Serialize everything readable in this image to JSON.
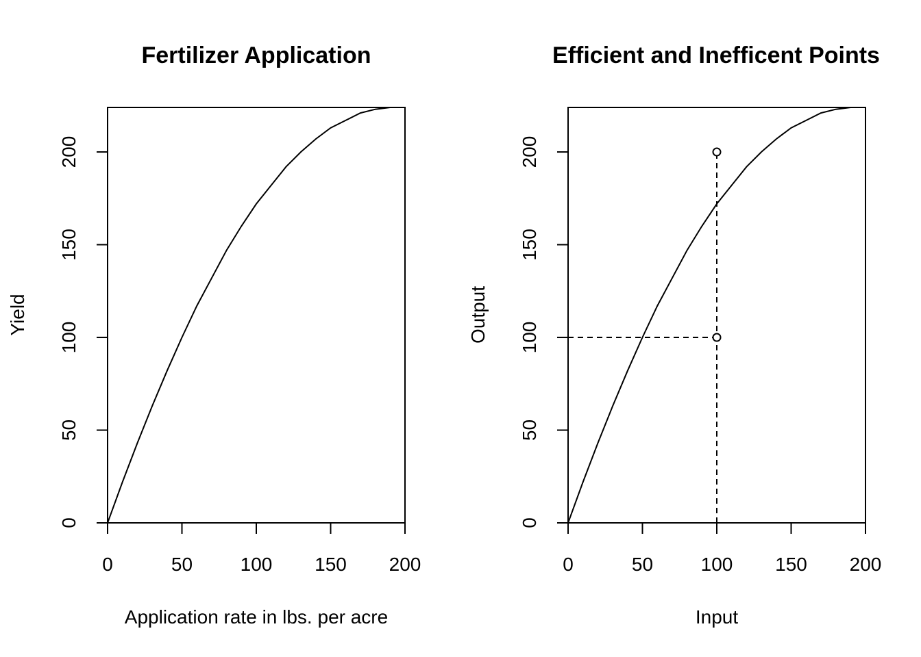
{
  "chart_data": [
    {
      "type": "line",
      "title": "Fertilizer Application",
      "xlabel": "Application rate in lbs. per acre",
      "ylabel": "Yield",
      "xlim": [
        0,
        200
      ],
      "ylim": [
        0,
        224
      ],
      "xticks": [
        "0",
        "50",
        "100",
        "150",
        "200"
      ],
      "yticks": [
        "0",
        "50",
        "100",
        "150",
        "200"
      ],
      "series": [
        {
          "x": [
            0,
            10,
            20,
            30,
            40,
            50,
            60,
            70,
            80,
            90,
            100,
            110,
            120,
            130,
            140,
            150,
            160,
            170,
            180,
            190,
            200
          ],
          "y": [
            0,
            22,
            43,
            63,
            82,
            100,
            117,
            132,
            147,
            160,
            172,
            182,
            192,
            200,
            207,
            213,
            217,
            221,
            223,
            224,
            224
          ]
        }
      ]
    },
    {
      "type": "line",
      "title": "Efficient and Inefficent Points",
      "xlabel": "Input",
      "ylabel": "Output",
      "xlim": [
        0,
        200
      ],
      "ylim": [
        0,
        224
      ],
      "xticks": [
        "0",
        "50",
        "100",
        "150",
        "200"
      ],
      "yticks": [
        "0",
        "50",
        "100",
        "150",
        "200"
      ],
      "series": [
        {
          "x": [
            0,
            10,
            20,
            30,
            40,
            50,
            60,
            70,
            80,
            90,
            100,
            110,
            120,
            130,
            140,
            150,
            160,
            170,
            180,
            190,
            200
          ],
          "y": [
            0,
            22,
            43,
            63,
            82,
            100,
            117,
            132,
            147,
            160,
            172,
            182,
            192,
            200,
            207,
            213,
            217,
            221,
            223,
            224,
            224
          ]
        }
      ],
      "points": [
        {
          "x": 100,
          "y": 200
        },
        {
          "x": 100,
          "y": 100
        }
      ],
      "reference_lines": [
        {
          "orientation": "vertical",
          "x": 100,
          "y_from": 0,
          "y_to": 200,
          "style": "dashed"
        },
        {
          "orientation": "horizontal",
          "y": 100,
          "x_from": 0,
          "x_to": 100,
          "style": "dashed"
        }
      ]
    }
  ]
}
